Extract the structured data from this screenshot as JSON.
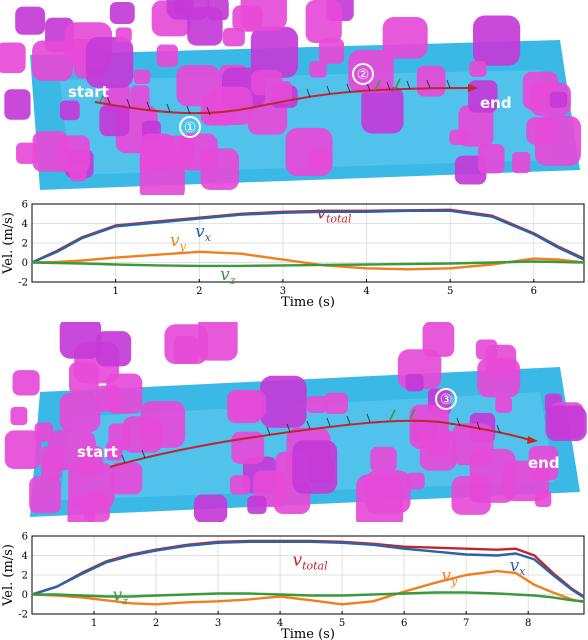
{
  "scenes": [
    {
      "start_label": "start",
      "end_label": "end",
      "markers": [
        "①",
        "②"
      ]
    },
    {
      "start_label": "start",
      "end_label": "end",
      "markers": [
        "③"
      ]
    }
  ],
  "colors": {
    "v_total": "#c0272d",
    "v_x": "#2a64a8",
    "v_y": "#f07f1f",
    "v_z": "#3a9a3a",
    "obstacle": "#e64ad8",
    "ground": "#3ab8e6"
  },
  "chart_data": [
    {
      "type": "line",
      "xlabel": "Time (s)",
      "ylabel": "Vel. (m/s)",
      "xlim": [
        0,
        6.6
      ],
      "ylim": [
        -2,
        6
      ],
      "xticks": [
        1,
        2,
        3,
        4,
        5,
        6
      ],
      "yticks": [
        -2,
        0,
        2,
        4,
        6
      ],
      "grid": true,
      "x": [
        0,
        0.3,
        0.6,
        1.0,
        1.5,
        2.0,
        2.5,
        3.0,
        3.5,
        4.0,
        4.5,
        5.0,
        5.5,
        6.0,
        6.3,
        6.6
      ],
      "series": [
        {
          "label": "v",
          "sub": "total",
          "key": "v_total",
          "label_pos": [
            3.4,
            4.5
          ],
          "values": [
            0,
            1.2,
            2.6,
            3.8,
            4.2,
            4.6,
            5.0,
            5.2,
            5.3,
            5.3,
            5.35,
            5.4,
            4.8,
            3.0,
            1.6,
            0.4
          ]
        },
        {
          "label": "v",
          "sub": "x",
          "key": "v_x",
          "label_pos": [
            1.95,
            2.6
          ],
          "values": [
            0,
            1.1,
            2.5,
            3.7,
            4.1,
            4.5,
            4.9,
            5.1,
            5.2,
            5.2,
            5.3,
            5.3,
            4.7,
            2.9,
            1.5,
            0.3
          ]
        },
        {
          "label": "v",
          "sub": "y",
          "key": "v_y",
          "label_pos": [
            1.65,
            1.7
          ],
          "values": [
            0,
            0.05,
            0.2,
            0.5,
            0.8,
            1.1,
            0.9,
            0.3,
            -0.3,
            -0.6,
            -0.7,
            -0.6,
            -0.2,
            0.4,
            0.3,
            0
          ]
        },
        {
          "label": "v",
          "sub": "z",
          "key": "v_z",
          "label_pos": [
            2.25,
            -1.8
          ],
          "values": [
            0,
            -0.05,
            -0.1,
            -0.2,
            -0.3,
            -0.35,
            -0.35,
            -0.3,
            -0.25,
            -0.2,
            -0.15,
            -0.1,
            0,
            0.1,
            0.05,
            0
          ]
        }
      ]
    },
    {
      "type": "line",
      "xlabel": "Time (s)",
      "ylabel": "Vel. (m/s)",
      "xlim": [
        0,
        8.9
      ],
      "ylim": [
        -2,
        6
      ],
      "xticks": [
        1,
        2,
        3,
        4,
        5,
        6,
        7,
        8
      ],
      "yticks": [
        -2,
        0,
        2,
        4,
        6
      ],
      "grid": true,
      "x": [
        0,
        0.4,
        0.8,
        1.2,
        1.6,
        2.0,
        2.5,
        3.0,
        3.5,
        4.0,
        4.5,
        5.0,
        5.5,
        6.0,
        6.5,
        7.0,
        7.5,
        7.8,
        8.1,
        8.4,
        8.7,
        8.9
      ],
      "series": [
        {
          "label": "v",
          "sub": "total",
          "key": "v_total",
          "label_pos": [
            4.2,
            3.0
          ],
          "values": [
            0,
            0.8,
            2.2,
            3.4,
            4.1,
            4.6,
            5.1,
            5.4,
            5.5,
            5.5,
            5.5,
            5.4,
            5.2,
            4.9,
            4.8,
            4.7,
            4.6,
            4.7,
            4.0,
            2.2,
            0.6,
            -0.2
          ]
        },
        {
          "label": "v",
          "sub": "x",
          "key": "v_x",
          "label_pos": [
            7.7,
            2.4
          ],
          "values": [
            0,
            0.8,
            2.1,
            3.3,
            4.0,
            4.5,
            5.0,
            5.3,
            5.4,
            5.4,
            5.4,
            5.3,
            5.1,
            4.7,
            4.4,
            4.1,
            4.0,
            4.2,
            3.6,
            2.0,
            0.5,
            -0.3
          ]
        },
        {
          "label": "v",
          "sub": "y",
          "key": "v_y",
          "label_pos": [
            6.6,
            1.4
          ],
          "values": [
            0,
            -0.1,
            -0.3,
            -0.6,
            -0.9,
            -1.0,
            -0.8,
            -0.7,
            -0.5,
            -0.2,
            -0.6,
            -1.0,
            -0.7,
            0.3,
            1.2,
            2.0,
            2.4,
            2.2,
            1.0,
            0.2,
            -0.5,
            -0.8
          ]
        },
        {
          "label": "v",
          "sub": "z",
          "key": "v_z",
          "label_pos": [
            1.3,
            -0.6
          ],
          "values": [
            0,
            0,
            -0.1,
            -0.2,
            -0.2,
            -0.1,
            0,
            0.1,
            0.1,
            0,
            -0.1,
            -0.1,
            0,
            0.1,
            0.2,
            0.2,
            0.1,
            0,
            -0.1,
            -0.3,
            -0.6,
            -0.7
          ]
        }
      ]
    }
  ]
}
